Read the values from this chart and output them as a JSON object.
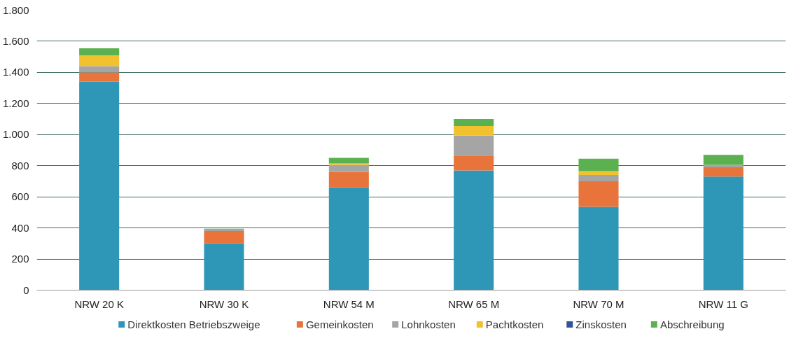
{
  "chart_data": {
    "type": "bar",
    "stacked": true,
    "categories": [
      "NRW 20 K",
      "NRW 30 K",
      "NRW 54 M",
      "NRW 65 M",
      "NRW 70 M",
      "NRW 11 G"
    ],
    "series": [
      {
        "name": "Direktkosten Betriebszweige",
        "color": "#2e97b8",
        "values": [
          1340,
          300,
          660,
          770,
          535,
          730
        ]
      },
      {
        "name": "Gemeinkosten",
        "color": "#e8743b",
        "values": [
          60,
          80,
          100,
          95,
          165,
          60
        ]
      },
      {
        "name": "Lohnkosten",
        "color": "#a5a5a5",
        "values": [
          40,
          10,
          45,
          130,
          40,
          15
        ]
      },
      {
        "name": "Pachtkosten",
        "color": "#f2c12e",
        "values": [
          70,
          0,
          10,
          60,
          25,
          0
        ]
      },
      {
        "name": "Zinskosten",
        "color": "#2f5597",
        "values": [
          0,
          0,
          0,
          0,
          0,
          0
        ]
      },
      {
        "name": "Abschreibung",
        "color": "#5bb04f",
        "values": [
          45,
          5,
          35,
          45,
          80,
          65
        ]
      }
    ],
    "ylim": [
      0,
      1800
    ],
    "yticks": [
      {
        "value": 0,
        "label": "0"
      },
      {
        "value": 200,
        "label": "200"
      },
      {
        "value": 400,
        "label": "400"
      },
      {
        "value": 600,
        "label": "600"
      },
      {
        "value": 800,
        "label": "800"
      },
      {
        "value": 1000,
        "label": "1.000"
      },
      {
        "value": 1200,
        "label": "1.200"
      },
      {
        "value": 1400,
        "label": "1.400"
      },
      {
        "value": 1600,
        "label": "1.600"
      },
      {
        "value": 1800,
        "label": "1.800"
      }
    ],
    "grid": "y",
    "legend": "bottom"
  }
}
